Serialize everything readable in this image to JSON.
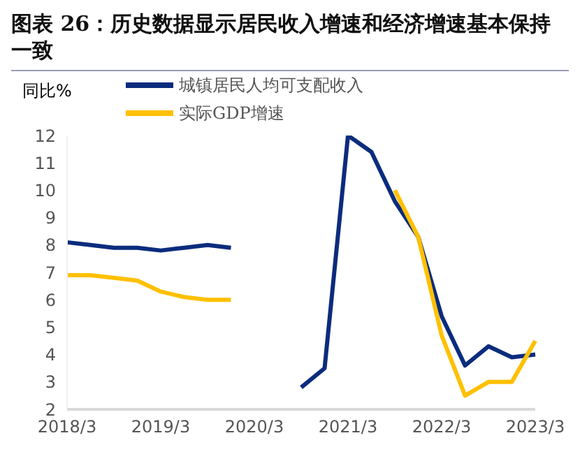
{
  "chart_data": {
    "type": "line",
    "title": "图表 26：历史数据显示居民收入增速和经济增速基本保持一致",
    "ylabel": "同比%",
    "categories": [
      "2018/3",
      null,
      null,
      null,
      "2019/3",
      null,
      null,
      null,
      "2020/3",
      null,
      null,
      null,
      "2021/3",
      null,
      null,
      null,
      "2022/3",
      null,
      null,
      null,
      "2023/3"
    ],
    "series": [
      {
        "name": "城镇居民人均可支配收入",
        "color": "#0b2c7d",
        "values": [
          8.1,
          8.0,
          7.9,
          7.9,
          7.8,
          7.9,
          8.0,
          7.9,
          null,
          null,
          2.8,
          3.5,
          12,
          11.4,
          9.6,
          8.3,
          5.4,
          3.6,
          4.3,
          3.9,
          4.0
        ]
      },
      {
        "name": "实际GDP增速",
        "color": "#ffc000",
        "values": [
          6.9,
          6.9,
          6.8,
          6.7,
          6.3,
          6.1,
          6.0,
          6.0,
          null,
          null,
          null,
          null,
          null,
          null,
          10.0,
          8.3,
          4.7,
          2.5,
          3.0,
          3.0,
          4.5
        ]
      }
    ],
    "ylim": [
      2,
      12
    ],
    "yticks": [
      2,
      3,
      4,
      5,
      6,
      7,
      8,
      9,
      10,
      11,
      12
    ],
    "grid": false,
    "legend": "top left",
    "marker": "none",
    "line_style": "solid"
  }
}
